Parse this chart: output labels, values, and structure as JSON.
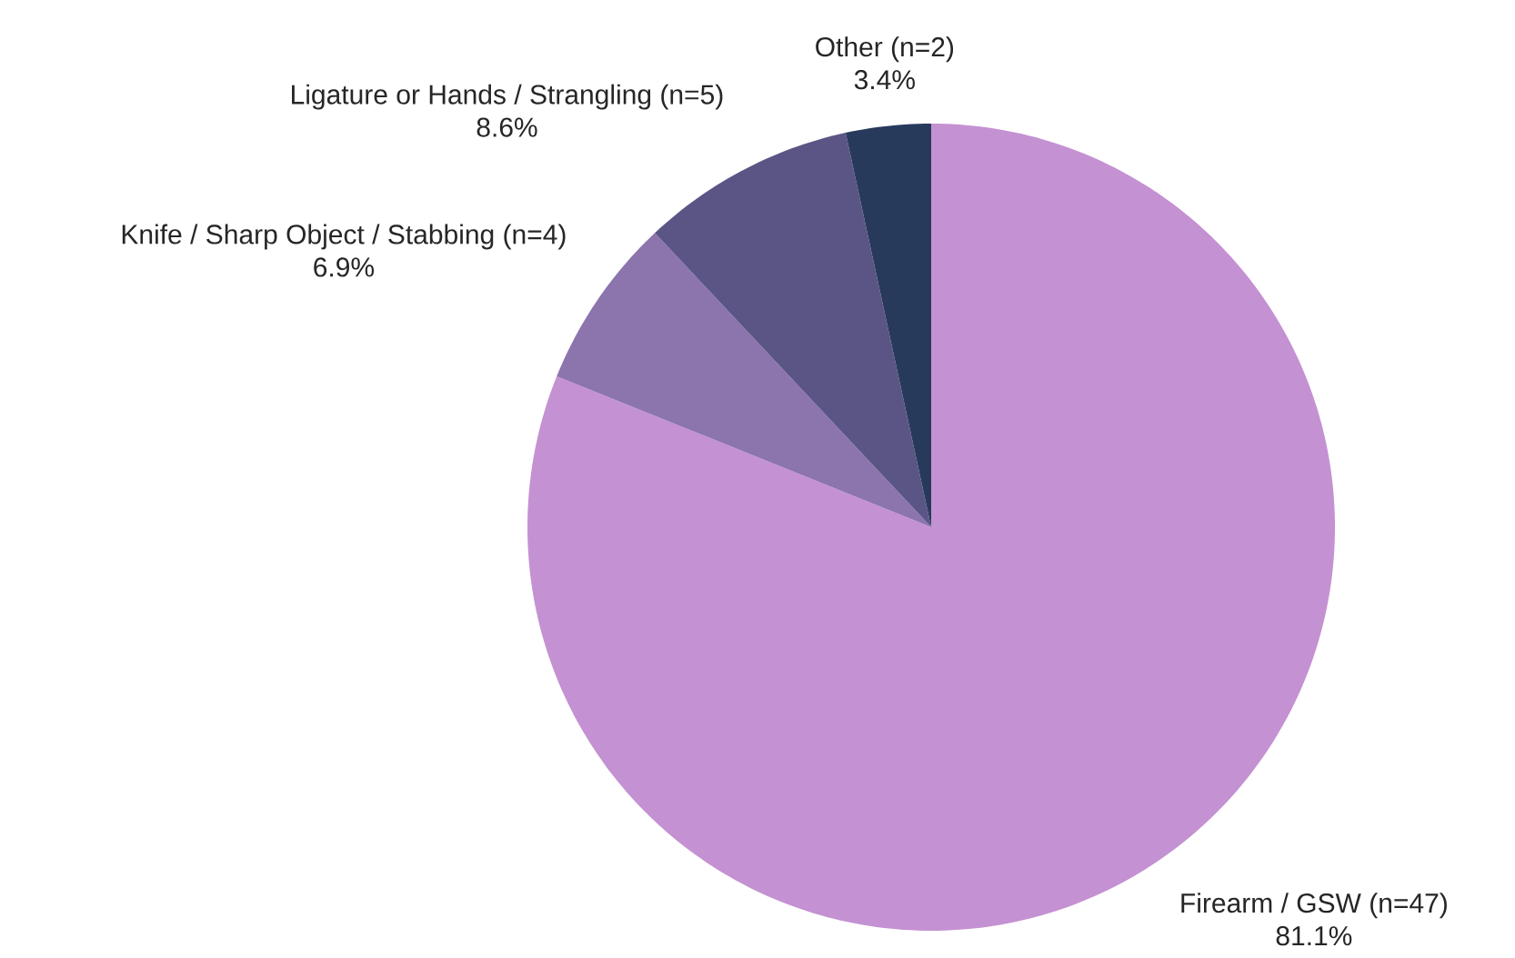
{
  "chart_data": {
    "type": "pie",
    "categories": [
      "Firearm / GSW (n=47)",
      "Knife / Sharp Object / Stabbing (n=4)",
      "Ligature or Hands / Strangling (n=5)",
      "Other (n=2)"
    ],
    "values": [
      81.1,
      6.9,
      8.6,
      3.4
    ],
    "value_labels": [
      "81.1%",
      "6.9%",
      "8.6%",
      "3.4%"
    ],
    "colors": [
      "#c491d2",
      "#8c74ad",
      "#5b5585",
      "#283a5c"
    ]
  }
}
